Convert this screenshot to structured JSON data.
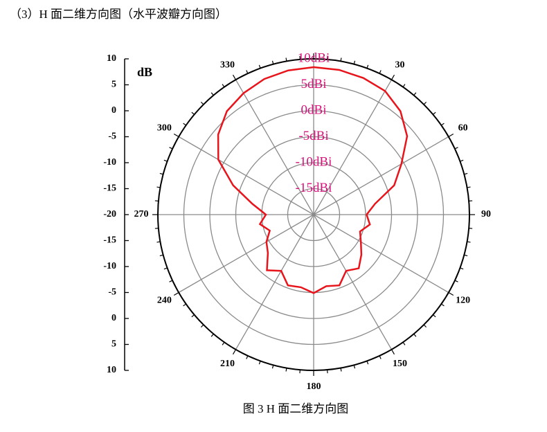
{
  "heading": "（3）H 面二维方向图（水平波瓣方向图）",
  "caption": "图 3 H 面二维方向图",
  "chart_data": {
    "type": "polar",
    "theta": [
      0,
      10,
      20,
      30,
      40,
      50,
      60,
      70,
      80,
      90,
      100,
      110,
      120,
      130,
      140,
      150,
      160,
      170,
      180,
      190,
      200,
      210,
      220,
      230,
      240,
      250,
      260,
      270,
      280,
      290,
      300,
      310,
      320,
      330,
      340,
      350
    ],
    "values": [
      8.4,
      8.3,
      8.0,
      7.5,
      6.0,
      3.5,
      -0.5,
      -3.5,
      -8,
      -9.8,
      -9.0,
      -10.5,
      -9.5,
      -8.0,
      -6.5,
      -7.5,
      -5.5,
      -6.0,
      -4.9,
      -5.8,
      -5.5,
      -7.5,
      -6.0,
      -8.5,
      -9.5,
      -11,
      -9.5,
      -10.8,
      -8.0,
      -3.5,
      1.2,
      4.0,
      6.0,
      7.0,
      7.8,
      8.2
    ],
    "color": "#e8141b",
    "rlim": [
      -20,
      10
    ],
    "rticks": [
      {
        "value": -15,
        "label": "-15dBi"
      },
      {
        "value": -10,
        "label": "-10dBi"
      },
      {
        "value": -5,
        "label": "-5dBi"
      },
      {
        "value": 0,
        "label": "0dBi"
      },
      {
        "value": 5,
        "label": "5dBi"
      },
      {
        "value": 10,
        "label": "10dBi"
      }
    ],
    "rtick_color": "#d6137a",
    "thetaticks": [
      {
        "value": 0,
        "label": null
      },
      30,
      60,
      90,
      120,
      150,
      180,
      210,
      240,
      270,
      300,
      330
    ],
    "ylabel": "dB",
    "yticks": [
      10,
      5,
      0,
      -5,
      -10,
      -15,
      -20,
      -15,
      -10,
      -5,
      0,
      5,
      10
    ]
  }
}
